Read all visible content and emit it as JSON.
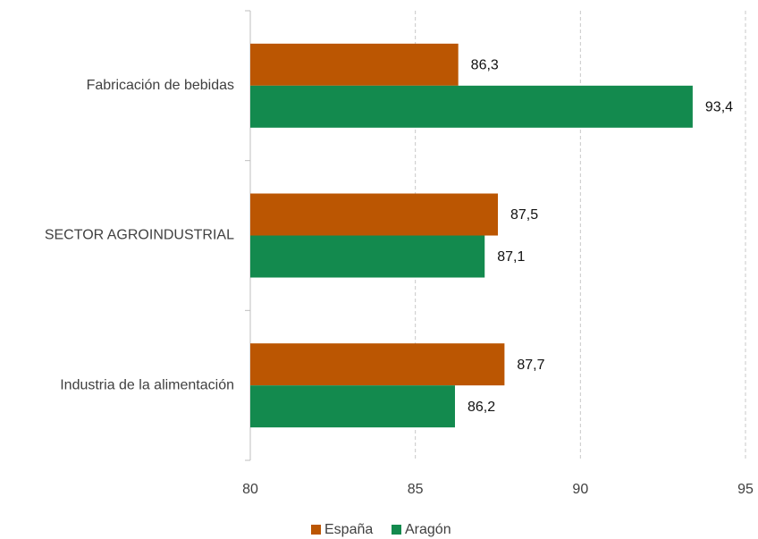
{
  "chart_data": {
    "type": "barh",
    "categories": [
      "Fabricación de bebidas",
      "SECTOR AGROINDUSTRIAL",
      "Industria de la alimentación"
    ],
    "series": [
      {
        "name": "España",
        "color": "#bb5602",
        "values": [
          86.3,
          87.5,
          87.7
        ],
        "value_labels": [
          "86,3",
          "87,5",
          "87,7"
        ]
      },
      {
        "name": "Aragón",
        "color": "#138a4e",
        "values": [
          93.4,
          87.1,
          86.2
        ],
        "value_labels": [
          "93,4",
          "87,1",
          "86,2"
        ]
      }
    ],
    "xlim": [
      80,
      95
    ],
    "xticks": [
      80,
      85,
      90,
      95
    ],
    "grid": true,
    "legend": "bottom"
  }
}
